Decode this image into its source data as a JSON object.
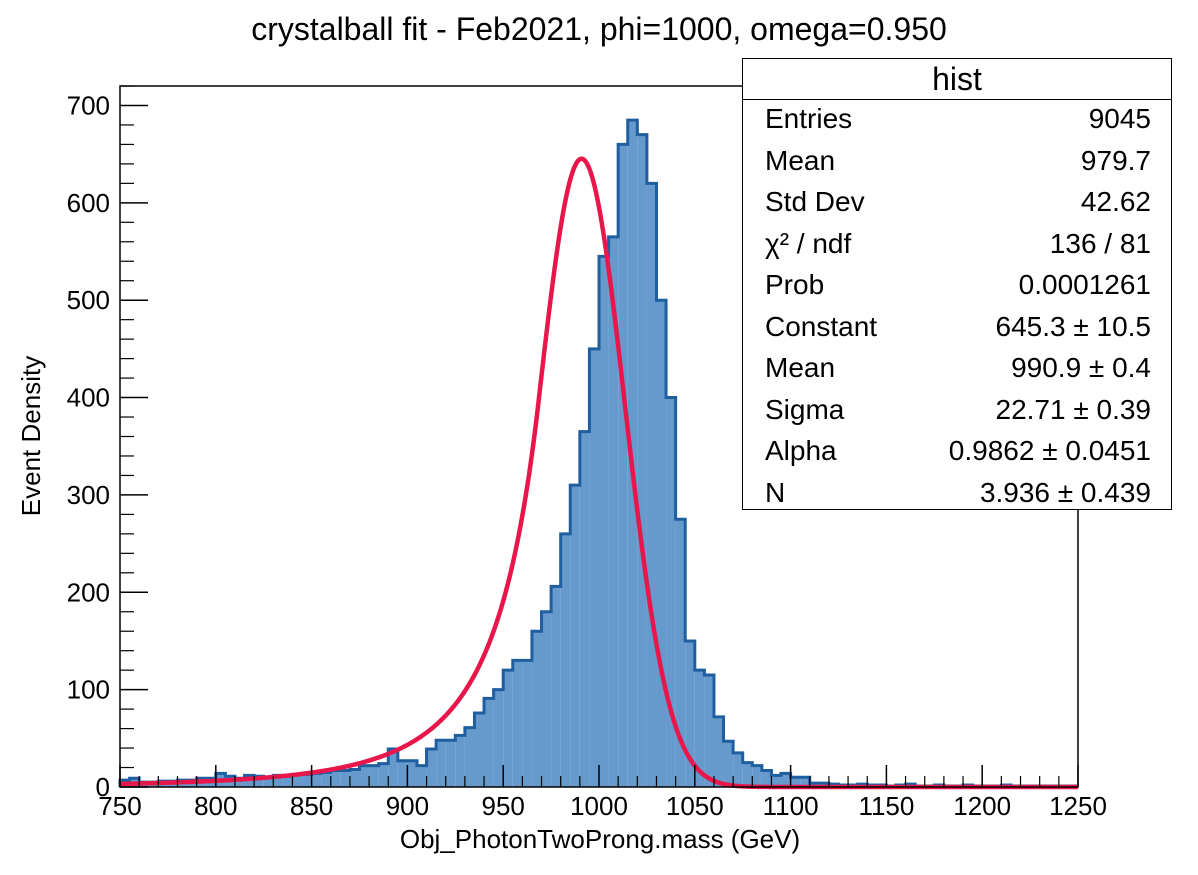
{
  "chart_data": {
    "type": "histogram",
    "title": "crystalball fit - Feb2021, phi=1000, omega=0.950",
    "xlabel": "Obj_PhotonTwoProng.mass (GeV)",
    "ylabel": "Event Density",
    "xlim": [
      750,
      1250
    ],
    "ylim": [
      0,
      720
    ],
    "xticks": [
      750,
      800,
      850,
      900,
      950,
      1000,
      1050,
      1100,
      1150,
      1200,
      1250
    ],
    "yticks": [
      0,
      100,
      200,
      300,
      400,
      500,
      600,
      700
    ],
    "bin_width": 5,
    "bin_start": 750,
    "bin_counts": [
      7,
      9,
      5,
      5,
      6,
      6,
      7,
      7,
      9,
      9,
      14,
      11,
      9,
      12,
      11,
      10,
      12,
      11,
      13,
      13,
      14,
      15,
      17,
      17,
      18,
      22,
      22,
      24,
      39,
      27,
      27,
      22,
      39,
      48,
      48,
      53,
      61,
      76,
      91,
      100,
      120,
      130,
      130,
      160,
      180,
      206,
      260,
      310,
      365,
      450,
      545,
      565,
      660,
      685,
      670,
      620,
      500,
      400,
      275,
      150,
      120,
      115,
      72,
      47,
      35,
      25,
      22,
      17,
      12,
      14,
      10,
      10,
      4,
      4,
      3,
      2,
      2,
      3,
      2,
      2,
      1,
      2,
      3,
      1,
      1,
      2,
      1,
      1,
      2,
      1,
      1,
      1,
      2,
      1,
      1,
      1,
      1,
      1,
      1,
      1
    ],
    "fit": {
      "function": "crystalball",
      "color": "#e8164a",
      "constant": 645.3,
      "mean": 990.9,
      "sigma": 22.71,
      "alpha": 0.9862,
      "n": 3.936
    },
    "colors": {
      "fill": "#6699cc",
      "outline": "#1f5fa0",
      "fit": "#e8164a"
    }
  },
  "stats": {
    "title": "hist",
    "rows": [
      {
        "label": "Entries",
        "value": "9045"
      },
      {
        "label": "Mean",
        "value": "979.7"
      },
      {
        "label": "Std Dev",
        "value": "42.62"
      },
      {
        "label": "χ² / ndf",
        "value": "136 / 81"
      },
      {
        "label": "Prob",
        "value": "0.0001261"
      },
      {
        "label": "Constant",
        "value": "645.3 ± 10.5"
      },
      {
        "label": "Mean",
        "value": "990.9 ± 0.4"
      },
      {
        "label": "Sigma",
        "value": "22.71 ± 0.39"
      },
      {
        "label": "Alpha",
        "value": "0.9862 ± 0.0451"
      },
      {
        "label": "N",
        "value": "3.936 ± 0.439"
      }
    ]
  }
}
